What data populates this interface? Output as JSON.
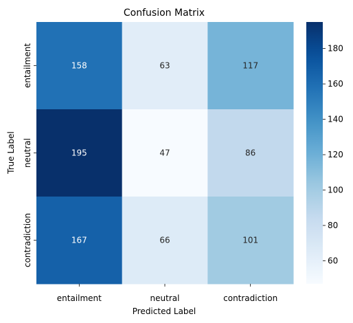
{
  "chart_data": {
    "type": "heatmap",
    "title": "Confusion Matrix",
    "xlabel": "Predicted Label",
    "ylabel": "True Label",
    "x_categories": [
      "entailment",
      "neutral",
      "contradiction"
    ],
    "y_categories": [
      "entailment",
      "neutral",
      "contradiction"
    ],
    "values": [
      [
        158,
        63,
        117
      ],
      [
        195,
        47,
        86
      ],
      [
        167,
        66,
        101
      ]
    ],
    "colormap": "Blues",
    "colorbar": {
      "range": [
        47,
        195
      ],
      "ticks": [
        60,
        80,
        100,
        120,
        140,
        160,
        180
      ]
    },
    "grid": false
  }
}
